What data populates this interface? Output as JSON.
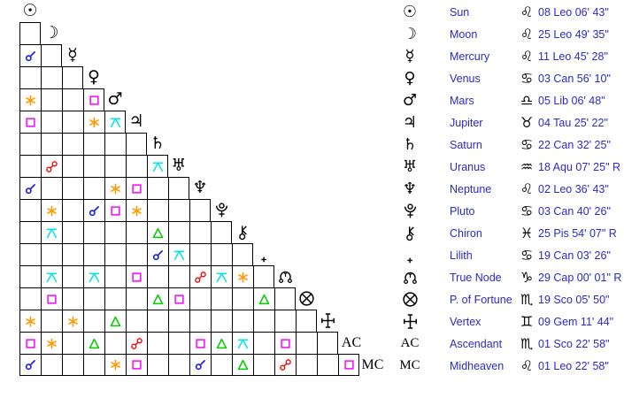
{
  "colors": {
    "background": "#ffffff",
    "grid_line": "#000000",
    "glyph": "#000000",
    "label_text": "#2a2ac8",
    "aspects": {
      "conjunction": "#1a1aee",
      "opposition": "#ee1111",
      "sextile": "#ff9900",
      "square": "#ff00ff",
      "trine": "#00cc00",
      "quincunx": "#00e5e5"
    }
  },
  "chart_data": {
    "type": "table",
    "title": "Natal aspectarian: triangular aspect grid with planet position list",
    "planets": [
      {
        "id": "sun",
        "name": "Sun",
        "sign": "leo",
        "position": "08 Leo 06' 43\""
      },
      {
        "id": "moon",
        "name": "Moon",
        "sign": "leo",
        "position": "25 Leo 49' 35\""
      },
      {
        "id": "mercury",
        "name": "Mercury",
        "sign": "leo",
        "position": "11 Leo 45' 28\""
      },
      {
        "id": "venus",
        "name": "Venus",
        "sign": "cancer",
        "position": "03 Can 56' 10\""
      },
      {
        "id": "mars",
        "name": "Mars",
        "sign": "libra",
        "position": "05 Lib 06' 48\""
      },
      {
        "id": "jupiter",
        "name": "Jupiter",
        "sign": "taurus",
        "position": "04 Tau 25' 22\""
      },
      {
        "id": "saturn",
        "name": "Saturn",
        "sign": "cancer",
        "position": "22 Can 32' 25\""
      },
      {
        "id": "uranus",
        "name": "Uranus",
        "sign": "aquarius",
        "position": "18 Aqu 07' 25\" R"
      },
      {
        "id": "neptune",
        "name": "Neptune",
        "sign": "leo",
        "position": "02 Leo 36' 43\""
      },
      {
        "id": "pluto",
        "name": "Pluto",
        "sign": "cancer",
        "position": "03 Can 40' 26\""
      },
      {
        "id": "chiron",
        "name": "Chiron",
        "sign": "pisces",
        "position": "25 Pis 54' 07\" R"
      },
      {
        "id": "lilith",
        "name": "Lilith",
        "sign": "cancer",
        "position": "19 Can 03' 26\""
      },
      {
        "id": "truenode",
        "name": "True Node",
        "sign": "capricorn",
        "position": "29 Cap 00' 01\" R"
      },
      {
        "id": "pof",
        "name": "P. of Fortune",
        "sign": "scorpio",
        "position": "19 Sco 05' 50\""
      },
      {
        "id": "vertex",
        "name": "Vertex",
        "sign": "gemini",
        "position": "09 Gem 11' 44\""
      },
      {
        "id": "ascendant",
        "name": "Ascendant",
        "sign": "scorpio",
        "position": "01 Sco 22' 58\""
      },
      {
        "id": "midheaven",
        "name": "Midheaven",
        "sign": "leo",
        "position": "01 Leo 22' 58\""
      }
    ],
    "diagonal_labels": {
      "ascendant": "AC",
      "midheaven": "MC"
    },
    "aspect_grid_rows": [
      {
        "planet": "sun",
        "cells": []
      },
      {
        "planet": "moon",
        "cells": [
          null
        ]
      },
      {
        "planet": "mercury",
        "cells": [
          "conjunction",
          null
        ]
      },
      {
        "planet": "venus",
        "cells": [
          null,
          null,
          null
        ]
      },
      {
        "planet": "mars",
        "cells": [
          "sextile",
          null,
          null,
          "square"
        ]
      },
      {
        "planet": "jupiter",
        "cells": [
          "square",
          null,
          null,
          "sextile",
          "quincunx"
        ]
      },
      {
        "planet": "saturn",
        "cells": [
          null,
          null,
          null,
          null,
          null,
          null
        ]
      },
      {
        "planet": "uranus",
        "cells": [
          null,
          "opposition",
          null,
          null,
          null,
          null,
          "quincunx"
        ]
      },
      {
        "planet": "neptune",
        "cells": [
          "conjunction",
          null,
          null,
          null,
          "sextile",
          "square",
          null,
          null
        ]
      },
      {
        "planet": "pluto",
        "cells": [
          null,
          "sextile",
          null,
          "conjunction",
          "square",
          "sextile",
          null,
          null,
          null
        ]
      },
      {
        "planet": "chiron",
        "cells": [
          null,
          "quincunx",
          null,
          null,
          null,
          null,
          "trine",
          null,
          null,
          null
        ]
      },
      {
        "planet": "lilith",
        "cells": [
          null,
          null,
          null,
          null,
          null,
          null,
          "conjunction",
          "quincunx",
          null,
          null,
          null
        ]
      },
      {
        "planet": "truenode",
        "cells": [
          null,
          "quincunx",
          null,
          "quincunx",
          null,
          "square",
          null,
          null,
          "opposition",
          "quincunx",
          "sextile",
          null
        ]
      },
      {
        "planet": "pof",
        "cells": [
          null,
          "square",
          null,
          null,
          null,
          null,
          "trine",
          "square",
          null,
          null,
          null,
          "trine",
          null
        ]
      },
      {
        "planet": "vertex",
        "cells": [
          "sextile",
          null,
          "sextile",
          null,
          "trine",
          null,
          null,
          null,
          null,
          null,
          null,
          null,
          null,
          null
        ]
      },
      {
        "planet": "ascendant",
        "cells": [
          "square",
          "sextile",
          null,
          "trine",
          null,
          "opposition",
          null,
          null,
          "square",
          "trine",
          "quincunx",
          null,
          "square",
          null,
          null
        ]
      },
      {
        "planet": "midheaven",
        "cells": [
          "conjunction",
          null,
          null,
          null,
          "sextile",
          "square",
          null,
          null,
          "conjunction",
          null,
          "trine",
          null,
          "opposition",
          null,
          null,
          "square"
        ]
      }
    ]
  }
}
